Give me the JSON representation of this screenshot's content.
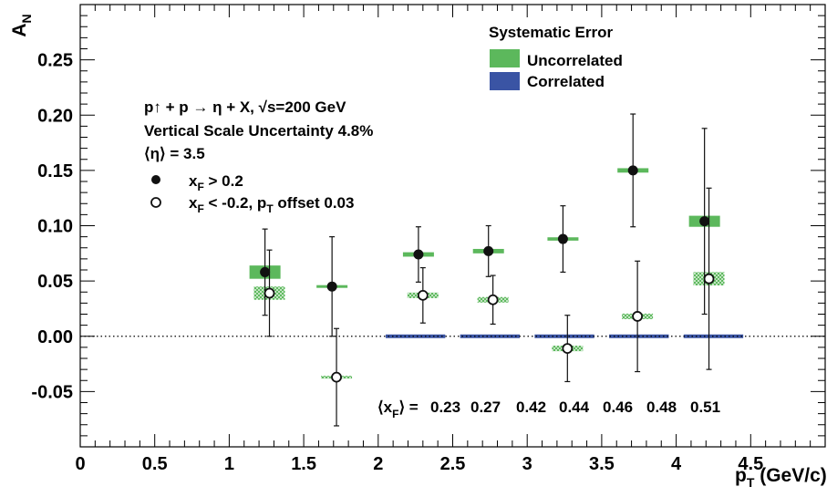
{
  "chart_data": {
    "type": "scatter",
    "xlabel": "p",
    "xlabel_sub": "T",
    "xlabel_unit": " (GeV/c)",
    "ylabel": "A",
    "ylabel_sub": "N",
    "xlim": [
      0,
      5
    ],
    "ylim": [
      -0.1,
      0.3
    ],
    "x_ticks": [
      "0",
      "0.5",
      "1",
      "1.5",
      "2",
      "2.5",
      "3",
      "3.5",
      "4",
      "4.5"
    ],
    "y_ticks": [
      "-0.05",
      "0.00",
      "0.05",
      "0.10",
      "0.15",
      "0.20",
      "0.25"
    ],
    "reference_line": 0,
    "annotations": {
      "reaction": "p↑ + p → η + X, √s=200 GeV",
      "scale_uncertainty": "Vertical Scale Uncertainty 4.8%",
      "eta": "⟨η⟩ = 3.5",
      "xf_label": "⟨x",
      "xf_sub": "F",
      "xf_eq": "⟩ =",
      "xf_values": [
        "0.23",
        "0.27",
        "0.42",
        "0.44",
        "0.46",
        "0.48",
        "0.51"
      ]
    },
    "legend": {
      "title": "Systematic Error",
      "uncorrelated": "Uncorrelated",
      "correlated": "Correlated",
      "filled_x": "x",
      "filled_sub": "F",
      "filled_rest": " >  0.2",
      "open_x": "x",
      "open_sub": "F",
      "open_mid": " < -0.2, p",
      "open_sub2": "T",
      "open_rest": " offset 0.03"
    },
    "colors": {
      "uncorrelated": "#5cb85c",
      "correlated": "#3a54a4",
      "marker": "#111111"
    },
    "series": [
      {
        "name": "x_F > 0.2",
        "marker": "filled",
        "points": [
          {
            "x": 1.24,
            "y": 0.058,
            "yerr_lo": 0.039,
            "yerr_hi": 0.039,
            "syst": 0.006
          },
          {
            "x": 1.69,
            "y": 0.045,
            "yerr_lo": 0.045,
            "yerr_hi": 0.045,
            "syst": 0.0008
          },
          {
            "x": 2.27,
            "y": 0.074,
            "yerr_lo": 0.025,
            "yerr_hi": 0.025,
            "syst": 0.002
          },
          {
            "x": 2.74,
            "y": 0.077,
            "yerr_lo": 0.023,
            "yerr_hi": 0.023,
            "syst": 0.002
          },
          {
            "x": 3.24,
            "y": 0.088,
            "yerr_lo": 0.03,
            "yerr_hi": 0.03,
            "syst": 0.0015
          },
          {
            "x": 3.71,
            "y": 0.15,
            "yerr_lo": 0.051,
            "yerr_hi": 0.051,
            "syst": 0.002
          },
          {
            "x": 4.19,
            "y": 0.104,
            "yerr_lo": 0.084,
            "yerr_hi": 0.084,
            "syst": 0.005
          }
        ]
      },
      {
        "name": "x_F < -0.2, p_T offset 0.03",
        "marker": "open",
        "points": [
          {
            "x": 1.27,
            "y": 0.039,
            "yerr_lo": 0.039,
            "yerr_hi": 0.039,
            "syst": 0.006
          },
          {
            "x": 1.72,
            "y": -0.037,
            "yerr_lo": 0.044,
            "yerr_hi": 0.044,
            "syst": 0.0012
          },
          {
            "x": 2.3,
            "y": 0.037,
            "yerr_lo": 0.025,
            "yerr_hi": 0.025,
            "syst": 0.0025
          },
          {
            "x": 2.77,
            "y": 0.033,
            "yerr_lo": 0.022,
            "yerr_hi": 0.022,
            "syst": 0.0025
          },
          {
            "x": 3.27,
            "y": -0.011,
            "yerr_lo": 0.03,
            "yerr_hi": 0.03,
            "syst": 0.0025
          },
          {
            "x": 3.74,
            "y": 0.018,
            "yerr_lo": 0.05,
            "yerr_hi": 0.05,
            "syst": 0.0025
          },
          {
            "x": 4.22,
            "y": 0.052,
            "yerr_lo": 0.082,
            "yerr_hi": 0.082,
            "syst": 0.006
          }
        ]
      }
    ],
    "correlated_bars": [
      {
        "x0": 2.05,
        "x1": 2.45,
        "y": 0.0
      },
      {
        "x0": 2.55,
        "x1": 2.95,
        "y": 0.0
      },
      {
        "x0": 3.05,
        "x1": 3.45,
        "y": 0.0
      },
      {
        "x0": 3.55,
        "x1": 3.95,
        "y": 0.0
      },
      {
        "x0": 4.05,
        "x1": 4.45,
        "y": 0.0
      }
    ]
  }
}
